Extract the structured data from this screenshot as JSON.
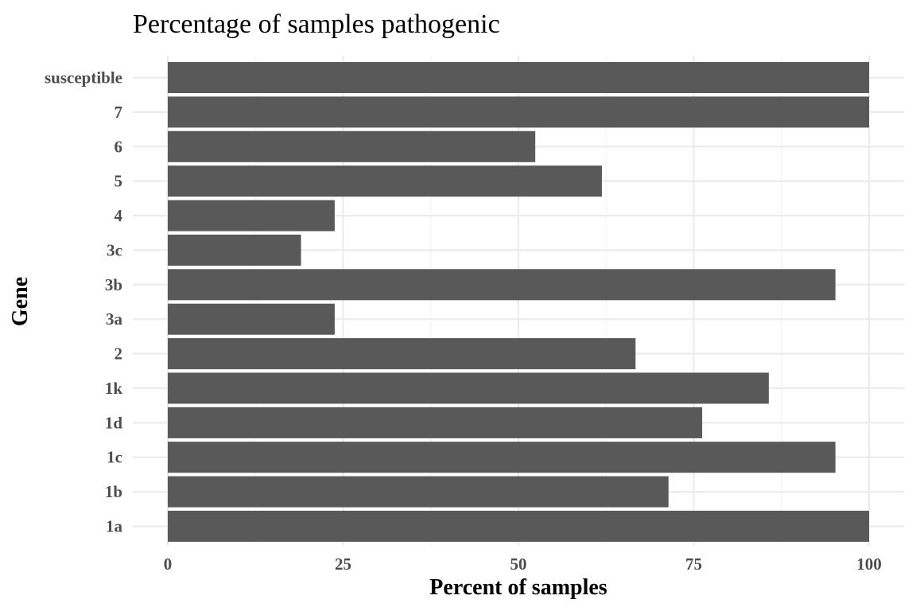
{
  "chart_data": {
    "type": "bar",
    "orientation": "horizontal",
    "title": "Percentage of samples pathogenic",
    "xlabel": "Percent of samples",
    "ylabel": "Gene",
    "xlim": [
      0,
      100
    ],
    "xticks": [
      0,
      25,
      50,
      75,
      100
    ],
    "xtick_labels": [
      "0",
      "25",
      "50",
      "75",
      "100"
    ],
    "grid": true,
    "legend": "none",
    "bar_color": "#595959",
    "categories": [
      "1a",
      "1b",
      "1c",
      "1d",
      "1k",
      "2",
      "3a",
      "3b",
      "3c",
      "4",
      "5",
      "6",
      "7",
      "susceptible"
    ],
    "values": [
      100,
      71.4,
      95.2,
      76.2,
      85.7,
      66.7,
      23.8,
      95.2,
      19,
      23.8,
      61.9,
      52.4,
      100,
      100
    ]
  }
}
